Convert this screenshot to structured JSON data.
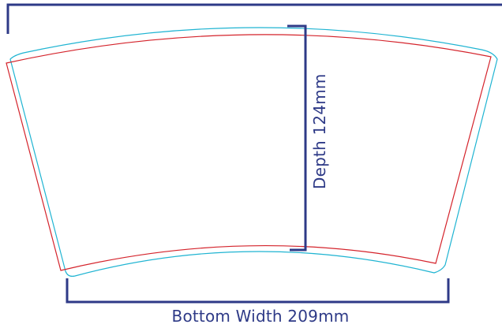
{
  "labels": {
    "depth": "Depth 124mm",
    "bottom_width": "Bottom Width 209mm"
  },
  "colors": {
    "dimension_line": "#2e3a87",
    "bleed_outline": "#1fb4d2",
    "trim_outline": "#d4232b",
    "background": "#ffffff"
  }
}
